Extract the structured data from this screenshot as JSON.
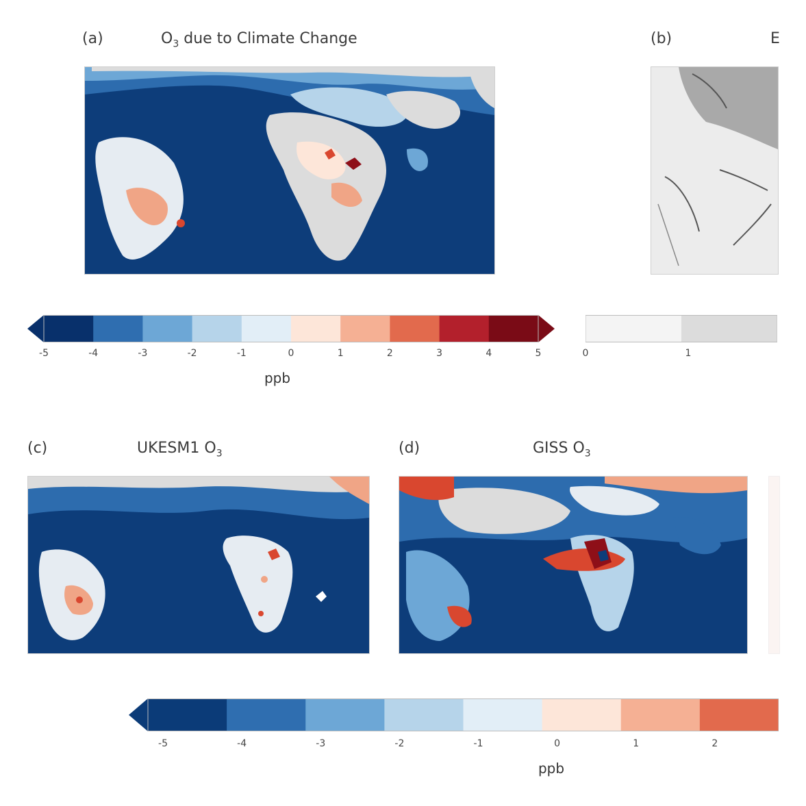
{
  "panels": {
    "a": {
      "letter": "(a)",
      "title_main": "O",
      "title_sub": "3",
      "title_rest": " due to Climate Change"
    },
    "b": {
      "letter": "(b)",
      "title": "E"
    },
    "c": {
      "letter": "(c)",
      "title_main": "UKESM1 O",
      "title_sub": "3"
    },
    "d": {
      "letter": "(d)",
      "title_main": "GISS O",
      "title_sub": "3"
    }
  },
  "colorbar_top": {
    "colors": [
      "#08306b",
      "#2f6eb0",
      "#6da7d6",
      "#b6d4ea",
      "#e2eef7",
      "#fde6d9",
      "#f5b094",
      "#e26a4d",
      "#b3202c",
      "#7a0b16"
    ],
    "ticks": [
      "-5",
      "-4",
      "-3",
      "-2",
      "-1",
      "0",
      "1",
      "2",
      "3",
      "4",
      "5"
    ],
    "unit": "ppb"
  },
  "colorbar_top_right": {
    "colors": [
      "#f4f4f4",
      "#dcdcdc"
    ],
    "ticks": [
      "0",
      "1"
    ]
  },
  "colorbar_bottom": {
    "colors": [
      "#0b3b78",
      "#2f6eb0",
      "#6da7d6",
      "#b6d4ea",
      "#e2eef7",
      "#fde6d9",
      "#f5b094",
      "#e26a4d"
    ],
    "ticks": [
      "-5",
      "-4",
      "-3",
      "-2",
      "-1",
      "0",
      "1",
      "2"
    ],
    "unit": "ppb"
  },
  "map_colors": {
    "ocean": "#0d3d7a",
    "ocean_mid": "#2d6cae",
    "ocean_light": "#5b97cf",
    "land": "#dcdcdc",
    "land_light": "#e6ecf2",
    "warm": "#f0a586",
    "hot": "#d9472f",
    "deep": "#8e0f18",
    "gray": "#a9a9a9",
    "gray_light": "#ececec"
  }
}
